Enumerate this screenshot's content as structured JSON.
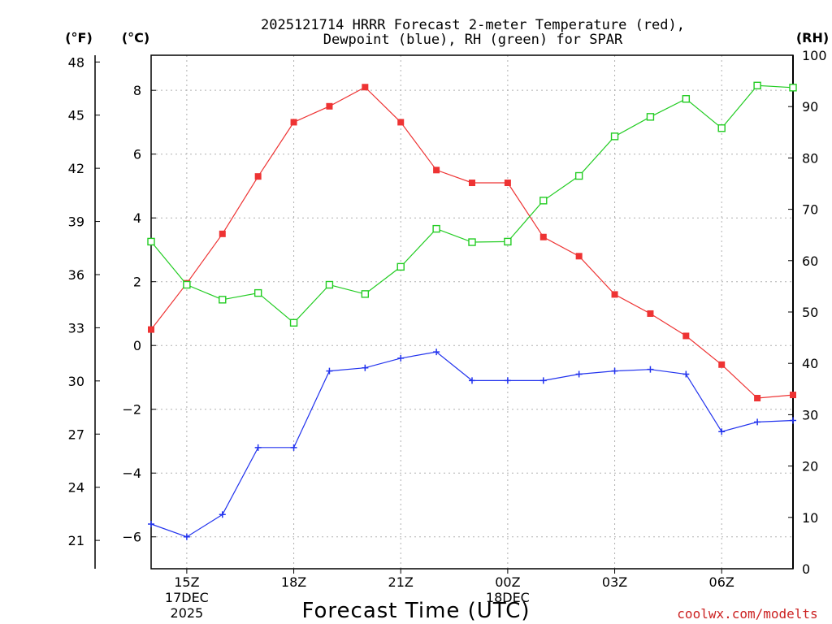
{
  "chart_data": {
    "type": "line",
    "title_line1": "2025121714 HRRR Forecast 2-meter Temperature (red),",
    "title_line2": "Dewpoint (blue), RH (green) for SPAR",
    "xlabel": "Forecast Time (UTC)",
    "credit": "coolwx.com/modelts",
    "units": {
      "fahrenheit": "(°F)",
      "celsius": "(°C)",
      "rh": "(RH)"
    },
    "x_hours": [
      14,
      15,
      16,
      17,
      18,
      19,
      20,
      21,
      22,
      23,
      24,
      25,
      26,
      27,
      28,
      29,
      30,
      31,
      32
    ],
    "xlim": [
      14,
      32
    ],
    "x_ticks": [
      {
        "hour": 15,
        "label": "15Z",
        "sub1": "17DEC",
        "sub2": "2025"
      },
      {
        "hour": 18,
        "label": "18Z"
      },
      {
        "hour": 21,
        "label": "21Z"
      },
      {
        "hour": 24,
        "label": "00Z",
        "sub1": "18DEC"
      },
      {
        "hour": 27,
        "label": "03Z"
      },
      {
        "hour": 30,
        "label": "06Z"
      }
    ],
    "celsius_axis": {
      "min": -7,
      "max": 9.1,
      "ticks": [
        -6,
        -4,
        -2,
        0,
        2,
        4,
        6,
        8
      ]
    },
    "fahrenheit_axis": {
      "ticks": [
        21,
        24,
        27,
        30,
        33,
        36,
        39,
        42,
        45,
        48
      ]
    },
    "rh_axis": {
      "min": 0,
      "max": 100,
      "ticks": [
        0,
        10,
        20,
        30,
        40,
        50,
        60,
        70,
        80,
        90,
        100
      ]
    },
    "series": [
      {
        "name": "2-meter Temperature",
        "color": "#ee3333",
        "marker": "filled-square",
        "axis": "celsius",
        "values": [
          0.5,
          1.95,
          3.5,
          5.3,
          7.0,
          7.5,
          8.1,
          7.0,
          5.5,
          5.1,
          5.1,
          3.4,
          2.8,
          1.6,
          1.0,
          0.3,
          -0.6,
          -1.65,
          -1.55
        ]
      },
      {
        "name": "Dewpoint",
        "color": "#2233ee",
        "marker": "plus",
        "axis": "celsius",
        "values": [
          -5.6,
          -6.0,
          -5.3,
          -3.2,
          -3.2,
          -0.8,
          -0.7,
          -0.4,
          -0.2,
          -1.1,
          -1.1,
          -1.1,
          -0.9,
          -0.8,
          -0.75,
          -0.9,
          -2.7,
          -2.4,
          -2.35
        ]
      },
      {
        "name": "RH",
        "color": "#22cc22",
        "marker": "open-square",
        "axis": "rh",
        "values": [
          63.7,
          55.3,
          52.4,
          53.7,
          47.9,
          55.3,
          53.5,
          58.8,
          66.2,
          63.6,
          63.7,
          71.7,
          76.5,
          84.2,
          88.0,
          91.5,
          85.8,
          94.1,
          93.7
        ]
      }
    ]
  }
}
